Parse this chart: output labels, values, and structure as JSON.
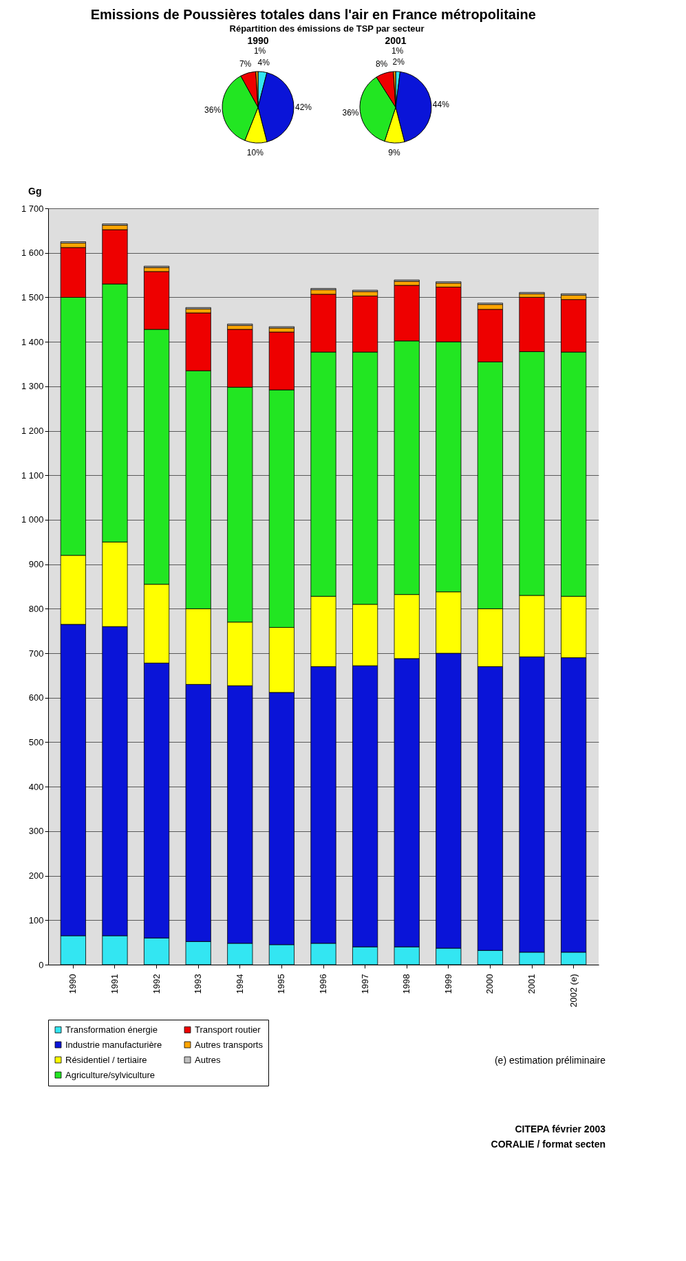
{
  "chart_data": [
    {
      "type": "bar",
      "title": "Emissions de Poussières totales dans l'air en France métropolitaine",
      "ylabel": "Gg",
      "stacked": true,
      "legend": "bottom",
      "grid": "y",
      "categories": [
        "1990",
        "1991",
        "1992",
        "1993",
        "1994",
        "1995",
        "1996",
        "1997",
        "1998",
        "1999",
        "2000",
        "2001",
        "2002 (e)"
      ],
      "ylim": [
        0,
        1700
      ],
      "yticks": [
        0,
        100,
        200,
        300,
        400,
        500,
        600,
        700,
        800,
        900,
        {
          "value": 1000,
          "label": "1 000"
        },
        {
          "value": 1100,
          "label": "1 100"
        },
        {
          "value": 1200,
          "label": "1 200"
        },
        {
          "value": 1300,
          "label": "1 300"
        },
        {
          "value": 1400,
          "label": "1 400"
        },
        {
          "value": 1500,
          "label": "1 500"
        },
        {
          "value": 1600,
          "label": "1 600"
        },
        {
          "value": 1700,
          "label": "1 700"
        }
      ],
      "series": [
        {
          "name": "Transformation énergie",
          "color": "#33e6f2",
          "values": [
            65,
            65,
            60,
            52,
            48,
            45,
            48,
            40,
            40,
            37,
            32,
            28,
            28
          ]
        },
        {
          "name": "Industrie manufacturière",
          "color": "#0a14d8",
          "values": [
            700,
            695,
            618,
            578,
            579,
            567,
            622,
            632,
            648,
            663,
            638,
            664,
            662
          ]
        },
        {
          "name": "Résidentiel / tertiaire",
          "color": "#ffff00",
          "values": [
            155,
            190,
            177,
            170,
            143,
            146,
            158,
            138,
            144,
            138,
            130,
            138,
            138
          ]
        },
        {
          "name": "Agriculture/sylviculture",
          "color": "#22e622",
          "values": [
            580,
            580,
            573,
            535,
            528,
            534,
            549,
            567,
            570,
            562,
            555,
            548,
            549
          ]
        },
        {
          "name": "Transport routier",
          "color": "#ee0000",
          "values": [
            112,
            122,
            130,
            130,
            130,
            130,
            130,
            126,
            125,
            123,
            118,
            122,
            118
          ]
        },
        {
          "name": "Autres transports",
          "color": "#ffa500",
          "values": [
            10,
            10,
            9,
            9,
            9,
            9,
            10,
            10,
            9,
            9,
            11,
            8,
            10
          ]
        },
        {
          "name": "Autres",
          "color": "#c0c0c0",
          "values": [
            3,
            3,
            3,
            3,
            3,
            3,
            3,
            3,
            3,
            3,
            3,
            3,
            3
          ]
        }
      ],
      "annotations": [
        "(e) estimation préliminaire",
        "CITEPA février 2003",
        "CORALIE / format secten"
      ]
    },
    {
      "type": "pie",
      "title": "1990",
      "annotations": [
        "Répartition des émissions de TSP par secteur"
      ],
      "values": [
        4,
        42,
        10,
        36,
        7,
        1
      ],
      "value_labels": [
        "4%",
        "42%",
        "10%",
        "36%",
        "7%",
        "1%"
      ],
      "colors": [
        "#33e6f2",
        "#0a14d8",
        "#ffff00",
        "#22e622",
        "#ee0000",
        "#ffa500"
      ]
    },
    {
      "type": "pie",
      "title": "2001",
      "values": [
        2,
        44,
        9,
        36,
        8,
        1
      ],
      "value_labels": [
        "2%",
        "44%",
        "9%",
        "36%",
        "8%",
        "1%"
      ],
      "colors": [
        "#33e6f2",
        "#0a14d8",
        "#ffff00",
        "#22e622",
        "#ee0000",
        "#ffa500"
      ]
    }
  ]
}
